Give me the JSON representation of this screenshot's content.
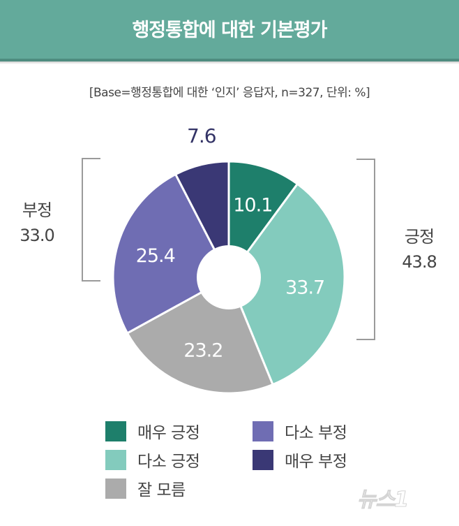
{
  "header": {
    "title": "행정통합에 대한 기본평가"
  },
  "subtitle": "[Base=행정통합에 대한 ‘인지’ 응답자, n=327, 단위: %]",
  "groups": {
    "negative": {
      "label": "부정",
      "value": "33.0"
    },
    "positive": {
      "label": "긍정",
      "value": "43.8"
    }
  },
  "slices": [
    {
      "label": "매우 긍정",
      "value": 10.1,
      "display": "10.1",
      "color": "#1e7f6b"
    },
    {
      "label": "다소 긍정",
      "value": 33.7,
      "display": "33.7",
      "color": "#83cbbd"
    },
    {
      "label": "잘 모름",
      "value": 23.2,
      "display": "23.2",
      "color": "#ababab"
    },
    {
      "label": "다소 부정",
      "value": 25.4,
      "display": "25.4",
      "color": "#6f6db3"
    },
    {
      "label": "매우 부정",
      "value": 7.6,
      "display": "7.6",
      "color": "#3a3875"
    }
  ],
  "legend": [
    {
      "label": "매우 긍정",
      "color": "#1e7f6b"
    },
    {
      "label": "다소 긍정",
      "color": "#83cbbd"
    },
    {
      "label": "잘 모름",
      "color": "#ababab"
    },
    {
      "label": "다소 부정",
      "color": "#6f6db3"
    },
    {
      "label": "매우 부정",
      "color": "#3a3875"
    }
  ],
  "watermark": "뉴스1",
  "chart_data": {
    "type": "pie",
    "subtype": "donut",
    "title": "행정통합에 대한 기본평가",
    "subtitle": "[Base=행정통합에 대한 ‘인지’ 응답자, n=327, 단위: %]",
    "categories": [
      "매우 긍정",
      "다소 긍정",
      "잘 모름",
      "다소 부정",
      "매우 부정"
    ],
    "values": [
      10.1,
      33.7,
      23.2,
      25.4,
      7.6
    ],
    "colors": [
      "#1e7f6b",
      "#83cbbd",
      "#ababab",
      "#6f6db3",
      "#3a3875"
    ],
    "annotations": [
      {
        "text": "긍정 43.8",
        "covers": [
          "매우 긍정",
          "다소 긍정"
        ],
        "position": "right bracket"
      },
      {
        "text": "부정 33.0",
        "covers": [
          "다소 부정",
          "매우 부정"
        ],
        "position": "left bracket"
      }
    ],
    "start_angle": "12 o'clock, clockwise",
    "legend_position": "bottom",
    "unit": "%",
    "n": 327
  }
}
